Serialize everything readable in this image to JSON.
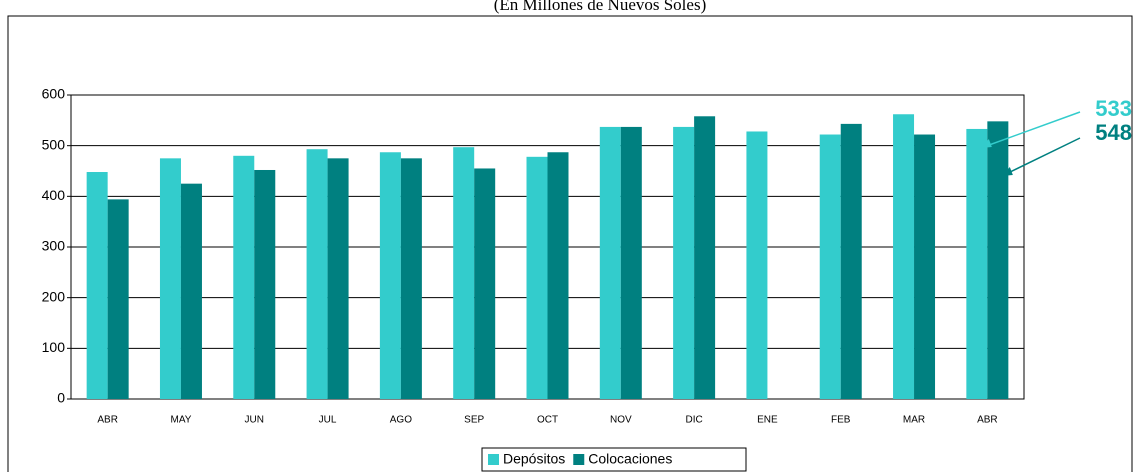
{
  "chart_data": {
    "type": "bar",
    "title": "(En Millones de Nuevos Soles)",
    "categories": [
      "ABR",
      "MAY",
      "JUN",
      "JUL",
      "AGO",
      "SEP",
      "OCT",
      "NOV",
      "DIC",
      "ENE",
      "FEB",
      "MAR",
      "ABR"
    ],
    "series": [
      {
        "name": "Depósitos",
        "color": "#33cccc",
        "values": [
          448,
          475,
          480,
          493,
          487,
          497,
          478,
          537,
          537,
          528,
          522,
          562,
          533
        ]
      },
      {
        "name": "Colocaciones",
        "color": "#008080",
        "values": [
          394,
          425,
          452,
          475,
          475,
          455,
          487,
          537,
          558,
          null,
          543,
          522,
          548
        ]
      }
    ],
    "ylim": [
      0,
      600
    ],
    "yticks": [
      0,
      100,
      200,
      300,
      400,
      500,
      600
    ],
    "grid": true
  }
}
